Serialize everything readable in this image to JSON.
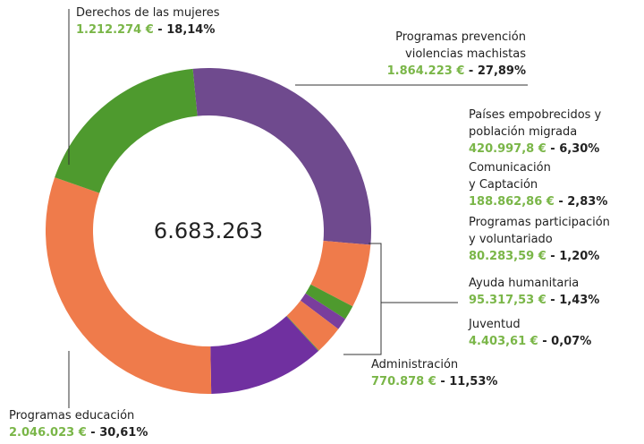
{
  "chart_data": {
    "type": "donut",
    "center_label": "6.683.263",
    "categories": [
      [
        "Programas prevención",
        "violencias machistas"
      ],
      [
        "Países empobrecidos y",
        "población migrada"
      ],
      [
        "Ayuda humanitaria"
      ],
      [
        "Programas participación",
        "y voluntariado"
      ],
      [
        "Comunicación",
        "y Captación"
      ],
      [
        "Juventud"
      ],
      [
        "Administración"
      ],
      [
        "Programas educación"
      ],
      [
        "Derechos de las mujeres"
      ]
    ],
    "amount_labels": [
      "1.864.223 €",
      "420.997,8 €",
      "95.317,53 €",
      "80.283,59 €",
      "188.862,86 €",
      "4.403,61 €",
      "770.878 €",
      "2.046.023  €",
      "1.212.274 €"
    ],
    "values": [
      27.89,
      6.3,
      1.43,
      1.2,
      2.83,
      0.07,
      11.53,
      30.61,
      18.14
    ],
    "value_labels": [
      " - 27,89%",
      " - 6,30%",
      " - 1,43%",
      " -  1,20%",
      " - 2,83%",
      " - 0,07%",
      " - 11,53%",
      "  -  30,61%",
      " - 18,14%"
    ],
    "colors": [
      "#6f4a8e",
      "#ef7b4b",
      "#4e9a2e",
      "#7a3e9d",
      "#ef7b4b",
      "#4e9a2e",
      "#7030a0",
      "#ef7b4b",
      "#4e9a2e"
    ]
  }
}
